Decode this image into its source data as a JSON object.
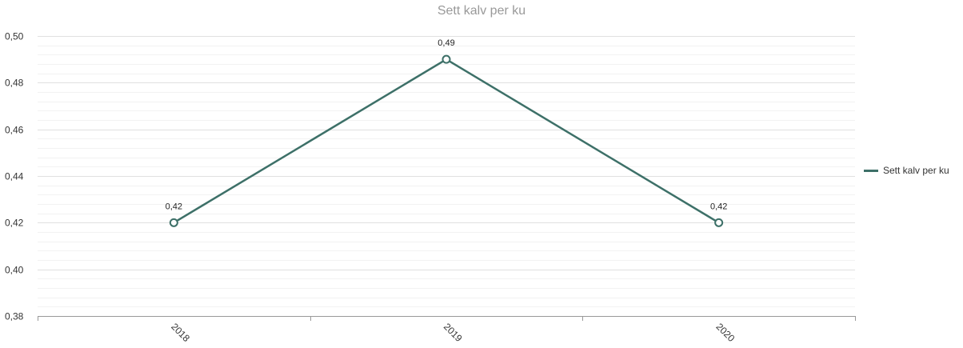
{
  "chart_data": {
    "type": "line",
    "title": "Sett kalv per ku",
    "categories": [
      "2018",
      "2019",
      "2020"
    ],
    "series": [
      {
        "name": "Sett kalv per ku",
        "values": [
          0.42,
          0.49,
          0.42
        ],
        "labels": [
          "0,42",
          "0,49",
          "0,42"
        ],
        "color": "#3d7068"
      }
    ],
    "ylim": [
      0.38,
      0.5
    ],
    "yticks": [
      0.38,
      0.4,
      0.42,
      0.44,
      0.46,
      0.48,
      0.5
    ],
    "ytick_labels": [
      "0,38",
      "0,40",
      "0,42",
      "0,44",
      "0,46",
      "0,48",
      "0,50"
    ],
    "grid": true,
    "legend_position": "right"
  }
}
